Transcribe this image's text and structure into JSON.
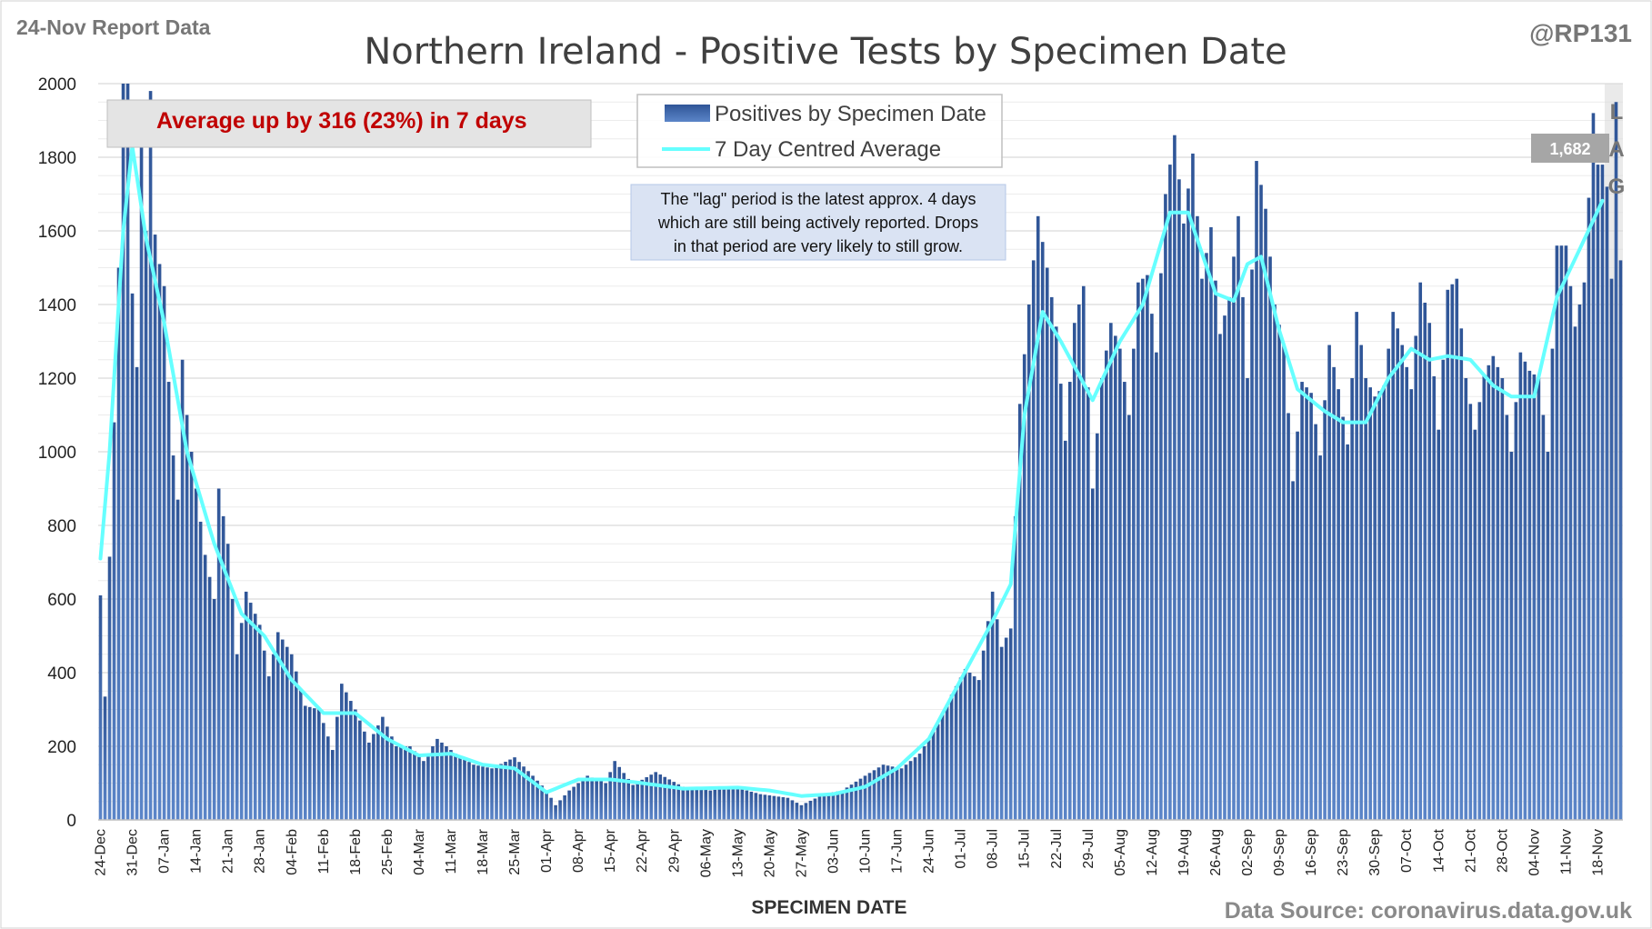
{
  "header": {
    "report_label": "24-Nov Report Data",
    "handle": "@RP131",
    "title": "Northern Ireland - Positive Tests by Specimen Date"
  },
  "callout": {
    "text": "Average up by 316 (23%) in 7 days"
  },
  "legend": {
    "bars_label": "Positives by Specimen Date",
    "line_label": "7 Day Centred Average"
  },
  "note": {
    "lines": [
      "The \"lag\" period is the latest approx. 4 days",
      "which are still being actively reported.  Drops",
      "in that period are very likely to still grow."
    ]
  },
  "lag_marker": {
    "letters": [
      "L",
      "A",
      "G"
    ]
  },
  "last_average_label": "1,682",
  "footer": {
    "xlabel": "SPECIMEN DATE",
    "source": "Data Source: coronavirus.data.gov.uk"
  },
  "colors": {
    "bar": "#2f5597",
    "bar_light": "#5b85c8",
    "line": "#66ffff",
    "callout": "#c00000",
    "grid": "#d9d9d9"
  },
  "chart_data": {
    "type": "bar",
    "title": "Northern Ireland - Positive Tests by Specimen Date",
    "xlabel": "SPECIMEN DATE",
    "ylabel": "",
    "ylim": [
      0,
      2000
    ],
    "yticks": [
      0,
      200,
      400,
      600,
      800,
      1000,
      1200,
      1400,
      1600,
      1800,
      2000
    ],
    "x_start": "2020-12-24",
    "x_end": "2021-11-23",
    "x_tick_labels": [
      "24-Dec",
      "31-Dec",
      "07-Jan",
      "14-Jan",
      "21-Jan",
      "28-Jan",
      "04-Feb",
      "11-Feb",
      "18-Feb",
      "25-Feb",
      "04-Mar",
      "11-Mar",
      "18-Mar",
      "25-Mar",
      "01-Apr",
      "08-Apr",
      "15-Apr",
      "22-Apr",
      "29-Apr",
      "06-May",
      "13-May",
      "20-May",
      "27-May",
      "03-Jun",
      "10-Jun",
      "17-Jun",
      "24-Jun",
      "01-Jul",
      "08-Jul",
      "15-Jul",
      "22-Jul",
      "29-Jul",
      "05-Aug",
      "12-Aug",
      "19-Aug",
      "26-Aug",
      "02-Sep",
      "09-Sep",
      "16-Sep",
      "23-Sep",
      "30-Sep",
      "07-Oct",
      "14-Oct",
      "21-Oct",
      "28-Oct",
      "04-Nov",
      "11-Nov",
      "18-Nov"
    ],
    "grid": true,
    "legend_position": "top-center",
    "lag_days": 4,
    "series": [
      {
        "name": "Positives by Specimen Date",
        "type": "bar",
        "anchors": [
          [
            "2020-12-24",
            610
          ],
          [
            "2020-12-25",
            335
          ],
          [
            "2020-12-26",
            715
          ],
          [
            "2020-12-27",
            1080
          ],
          [
            "2020-12-28",
            1500
          ],
          [
            "2020-12-29",
            2000
          ],
          [
            "2020-12-30",
            2000
          ],
          [
            "2020-12-31",
            1430
          ],
          [
            "2021-01-01",
            1230
          ],
          [
            "2021-01-02",
            1900
          ],
          [
            "2021-01-03",
            1600
          ],
          [
            "2021-01-04",
            1980
          ],
          [
            "2021-01-05",
            1590
          ],
          [
            "2021-01-06",
            1510
          ],
          [
            "2021-01-07",
            1450
          ],
          [
            "2021-01-08",
            1190
          ],
          [
            "2021-01-09",
            990
          ],
          [
            "2021-01-10",
            870
          ],
          [
            "2021-01-11",
            1250
          ],
          [
            "2021-01-12",
            1100
          ],
          [
            "2021-01-14",
            900
          ],
          [
            "2021-01-16",
            720
          ],
          [
            "2021-01-18",
            600
          ],
          [
            "2021-01-19",
            900
          ],
          [
            "2021-01-21",
            750
          ],
          [
            "2021-01-23",
            450
          ],
          [
            "2021-01-25",
            620
          ],
          [
            "2021-01-28",
            530
          ],
          [
            "2021-01-30",
            390
          ],
          [
            "2021-02-01",
            510
          ],
          [
            "2021-02-04",
            450
          ],
          [
            "2021-02-07",
            310
          ],
          [
            "2021-02-10",
            300
          ],
          [
            "2021-02-13",
            190
          ],
          [
            "2021-02-15",
            370
          ],
          [
            "2021-02-18",
            300
          ],
          [
            "2021-02-21",
            210
          ],
          [
            "2021-02-24",
            280
          ],
          [
            "2021-02-27",
            200
          ],
          [
            "2021-03-02",
            200
          ],
          [
            "2021-03-05",
            160
          ],
          [
            "2021-03-08",
            220
          ],
          [
            "2021-03-12",
            180
          ],
          [
            "2021-03-16",
            150
          ],
          [
            "2021-03-20",
            140
          ],
          [
            "2021-03-25",
            170
          ],
          [
            "2021-03-29",
            120
          ],
          [
            "2021-04-01",
            80
          ],
          [
            "2021-04-03",
            40
          ],
          [
            "2021-04-06",
            80
          ],
          [
            "2021-04-10",
            120
          ],
          [
            "2021-04-14",
            100
          ],
          [
            "2021-04-16",
            160
          ],
          [
            "2021-04-20",
            95
          ],
          [
            "2021-04-25",
            130
          ],
          [
            "2021-05-01",
            90
          ],
          [
            "2021-05-07",
            80
          ],
          [
            "2021-05-12",
            90
          ],
          [
            "2021-05-18",
            70
          ],
          [
            "2021-05-24",
            60
          ],
          [
            "2021-05-27",
            40
          ],
          [
            "2021-06-01",
            70
          ],
          [
            "2021-06-05",
            80
          ],
          [
            "2021-06-10",
            120
          ],
          [
            "2021-06-14",
            150
          ],
          [
            "2021-06-18",
            140
          ],
          [
            "2021-06-22",
            180
          ],
          [
            "2021-06-26",
            260
          ],
          [
            "2021-06-29",
            340
          ],
          [
            "2021-07-02",
            410
          ],
          [
            "2021-07-05",
            380
          ],
          [
            "2021-07-08",
            620
          ],
          [
            "2021-07-10",
            470
          ],
          [
            "2021-07-12",
            520
          ],
          [
            "2021-07-14",
            1130
          ],
          [
            "2021-07-16",
            1400
          ],
          [
            "2021-07-18",
            1640
          ],
          [
            "2021-07-20",
            1500
          ],
          [
            "2021-07-22",
            1340
          ],
          [
            "2021-07-24",
            1030
          ],
          [
            "2021-07-26",
            1350
          ],
          [
            "2021-07-28",
            1450
          ],
          [
            "2021-07-30",
            900
          ],
          [
            "2021-08-01",
            1200
          ],
          [
            "2021-08-03",
            1350
          ],
          [
            "2021-08-05",
            1280
          ],
          [
            "2021-08-07",
            1100
          ],
          [
            "2021-08-09",
            1460
          ],
          [
            "2021-08-11",
            1480
          ],
          [
            "2021-08-13",
            1270
          ],
          [
            "2021-08-15",
            1700
          ],
          [
            "2021-08-17",
            1860
          ],
          [
            "2021-08-19",
            1620
          ],
          [
            "2021-08-21",
            1810
          ],
          [
            "2021-08-23",
            1470
          ],
          [
            "2021-08-25",
            1610
          ],
          [
            "2021-08-27",
            1320
          ],
          [
            "2021-08-29",
            1420
          ],
          [
            "2021-08-31",
            1640
          ],
          [
            "2021-09-02",
            1200
          ],
          [
            "2021-09-04",
            1790
          ],
          [
            "2021-09-06",
            1660
          ],
          [
            "2021-09-08",
            1400
          ],
          [
            "2021-09-10",
            1290
          ],
          [
            "2021-09-12",
            920
          ],
          [
            "2021-09-14",
            1190
          ],
          [
            "2021-09-16",
            1160
          ],
          [
            "2021-09-18",
            990
          ],
          [
            "2021-09-20",
            1290
          ],
          [
            "2021-09-22",
            1170
          ],
          [
            "2021-09-24",
            1020
          ],
          [
            "2021-09-26",
            1380
          ],
          [
            "2021-09-28",
            1200
          ],
          [
            "2021-09-30",
            1150
          ],
          [
            "2021-10-02",
            1180
          ],
          [
            "2021-10-04",
            1380
          ],
          [
            "2021-10-06",
            1290
          ],
          [
            "2021-10-08",
            1170
          ],
          [
            "2021-10-10",
            1460
          ],
          [
            "2021-10-12",
            1350
          ],
          [
            "2021-10-14",
            1060
          ],
          [
            "2021-10-16",
            1440
          ],
          [
            "2021-10-18",
            1470
          ],
          [
            "2021-10-20",
            1200
          ],
          [
            "2021-10-22",
            1060
          ],
          [
            "2021-10-24",
            1210
          ],
          [
            "2021-10-26",
            1260
          ],
          [
            "2021-10-28",
            1200
          ],
          [
            "2021-10-30",
            1000
          ],
          [
            "2021-11-01",
            1270
          ],
          [
            "2021-11-03",
            1220
          ],
          [
            "2021-11-05",
            1200
          ],
          [
            "2021-11-07",
            1000
          ],
          [
            "2021-11-09",
            1560
          ],
          [
            "2021-11-11",
            1560
          ],
          [
            "2021-11-13",
            1340
          ],
          [
            "2021-11-15",
            1460
          ],
          [
            "2021-11-17",
            1920
          ],
          [
            "2021-11-18",
            1780
          ],
          [
            "2021-11-19",
            1780
          ],
          [
            "2021-11-20",
            1720
          ],
          [
            "2021-11-21",
            1470
          ],
          [
            "2021-11-22",
            1950
          ],
          [
            "2021-11-23",
            1520
          ]
        ]
      },
      {
        "name": "7 Day Centred Average",
        "type": "line",
        "anchors": [
          [
            "2020-12-24",
            710
          ],
          [
            "2020-12-26",
            1000
          ],
          [
            "2020-12-29",
            1600
          ],
          [
            "2020-12-31",
            1830
          ],
          [
            "2021-01-03",
            1580
          ],
          [
            "2021-01-07",
            1350
          ],
          [
            "2021-01-12",
            1000
          ],
          [
            "2021-01-18",
            750
          ],
          [
            "2021-01-24",
            560
          ],
          [
            "2021-01-29",
            500
          ],
          [
            "2021-02-04",
            380
          ],
          [
            "2021-02-11",
            290
          ],
          [
            "2021-02-18",
            290
          ],
          [
            "2021-02-25",
            220
          ],
          [
            "2021-03-04",
            175
          ],
          [
            "2021-03-11",
            180
          ],
          [
            "2021-03-18",
            150
          ],
          [
            "2021-03-25",
            140
          ],
          [
            "2021-04-01",
            75
          ],
          [
            "2021-04-08",
            110
          ],
          [
            "2021-04-15",
            110
          ],
          [
            "2021-04-22",
            100
          ],
          [
            "2021-05-01",
            85
          ],
          [
            "2021-05-13",
            88
          ],
          [
            "2021-05-20",
            80
          ],
          [
            "2021-05-27",
            65
          ],
          [
            "2021-06-03",
            70
          ],
          [
            "2021-06-10",
            90
          ],
          [
            "2021-06-17",
            140
          ],
          [
            "2021-06-24",
            220
          ],
          [
            "2021-07-01",
            380
          ],
          [
            "2021-07-08",
            540
          ],
          [
            "2021-07-12",
            640
          ],
          [
            "2021-07-15",
            1100
          ],
          [
            "2021-07-19",
            1380
          ],
          [
            "2021-07-23",
            1300
          ],
          [
            "2021-07-30",
            1140
          ],
          [
            "2021-08-05",
            1300
          ],
          [
            "2021-08-10",
            1400
          ],
          [
            "2021-08-16",
            1650
          ],
          [
            "2021-08-20",
            1650
          ],
          [
            "2021-08-26",
            1430
          ],
          [
            "2021-08-30",
            1410
          ],
          [
            "2021-09-02",
            1510
          ],
          [
            "2021-09-05",
            1530
          ],
          [
            "2021-09-09",
            1330
          ],
          [
            "2021-09-13",
            1170
          ],
          [
            "2021-09-19",
            1110
          ],
          [
            "2021-09-23",
            1080
          ],
          [
            "2021-09-28",
            1080
          ],
          [
            "2021-10-03",
            1200
          ],
          [
            "2021-10-08",
            1280
          ],
          [
            "2021-10-12",
            1250
          ],
          [
            "2021-10-16",
            1260
          ],
          [
            "2021-10-21",
            1250
          ],
          [
            "2021-10-26",
            1180
          ],
          [
            "2021-10-30",
            1150
          ],
          [
            "2021-11-04",
            1150
          ],
          [
            "2021-11-09",
            1420
          ],
          [
            "2021-11-14",
            1550
          ],
          [
            "2021-11-19",
            1682
          ]
        ]
      }
    ]
  }
}
